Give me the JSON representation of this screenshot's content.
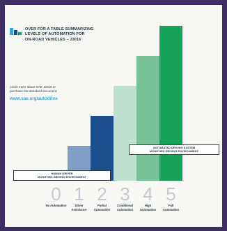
{
  "header": {
    "lines": [
      "OVER FOR A TABLE SUMMARIZING",
      "LEVELS OF AUTOMATION FOR",
      "ON-ROAD VEHICLES – J3016"
    ]
  },
  "learn_more": {
    "lines": [
      "Learn more about SAE J3016 or",
      "purchase the standard document:"
    ],
    "url": "www.sae.org/autodrive"
  },
  "labels": {
    "human_driver": [
      "HUMAN DRIVER",
      "MONITORS DRIVING ENVIRONMENT"
    ],
    "automated_system": [
      "AUTOMATED DRIVING SYSTEM",
      "MONITORS DRIVING ENVIRONMENT"
    ]
  },
  "colors": {
    "background": "#3f2e63",
    "card": "#f7f7f4",
    "accent_url": "#3aa5d6",
    "bars": [
      "#e6e9ed",
      "#7f9fc4",
      "#1b4f8e",
      "#bde0cf",
      "#77c397",
      "#19a35a"
    ]
  },
  "chart_data": {
    "type": "bar",
    "categories": [
      "0",
      "1",
      "2",
      "3",
      "4",
      "5"
    ],
    "category_labels": [
      [
        "No Automation"
      ],
      [
        "Driver",
        "Assistance"
      ],
      [
        "Partial",
        "Automation"
      ],
      [
        "Conditional",
        "Automation"
      ],
      [
        "High",
        "Automation"
      ],
      [
        "Full",
        "Automation"
      ]
    ],
    "values": [
      0,
      1,
      2,
      3,
      4,
      5
    ],
    "ylim": [
      0,
      5
    ],
    "grid": false,
    "legend": "none"
  }
}
